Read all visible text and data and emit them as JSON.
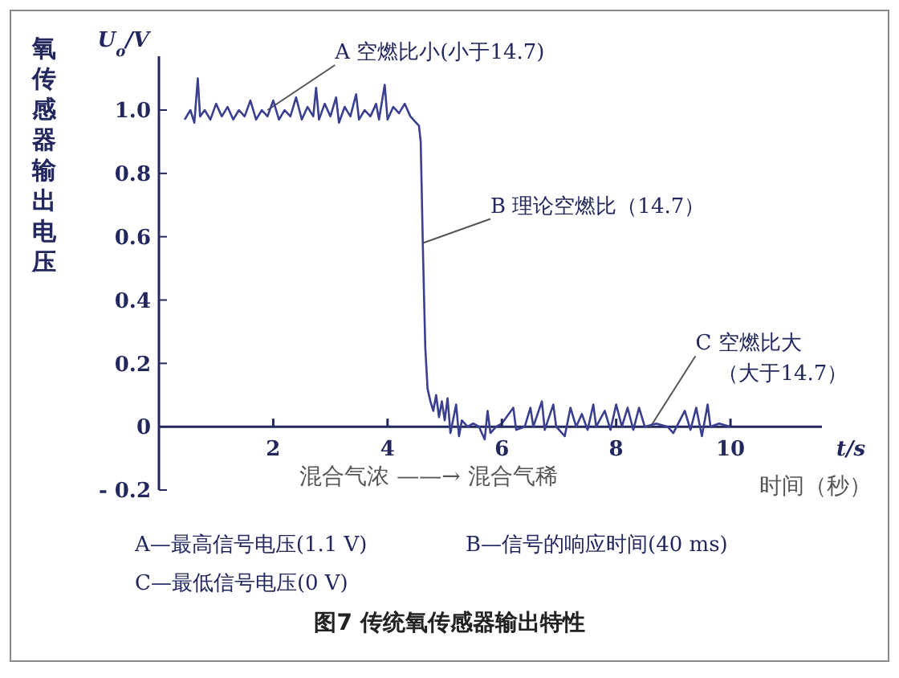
{
  "chart_data": {
    "type": "line",
    "title": "图7 传统氧传感器输出特性",
    "xlabel": "t/s",
    "ylabel": "氧传感器输出电压",
    "annotations": [
      {
        "text": "A 空燃比小(小于14.7)",
        "x": 1.9,
        "y": 1.0
      },
      {
        "text": "B 理论空燃比（14.7）",
        "x": 4.62,
        "y": 0.58
      },
      {
        "text": "C 空燃比大（大于14.7）",
        "x": 8.6,
        "y": 0.0
      },
      "U$_{o}$/V",
      "混合气浓 ——→ 混合气稀",
      "时间（秒）",
      "A—最高信号电压(1.1 V)",
      "B—信号的响应时间(40 ms)",
      "C—最低信号电压(0 V)"
    ],
    "x": [
      0.45,
      0.55,
      0.62,
      0.68,
      0.72,
      0.8,
      0.9,
      1.0,
      1.1,
      1.2,
      1.3,
      1.4,
      1.5,
      1.6,
      1.7,
      1.8,
      1.9,
      2.0,
      2.1,
      2.2,
      2.3,
      2.4,
      2.5,
      2.6,
      2.7,
      2.75,
      2.8,
      2.9,
      3.0,
      3.1,
      3.15,
      3.25,
      3.35,
      3.45,
      3.5,
      3.6,
      3.7,
      3.8,
      3.85,
      3.95,
      4.0,
      4.1,
      4.2,
      4.3,
      4.4,
      4.45,
      4.55,
      4.58,
      4.62,
      4.66,
      4.7,
      4.75,
      4.8,
      4.85,
      4.9,
      4.95,
      5.0,
      5.05,
      5.1,
      5.2,
      5.25,
      5.3,
      5.4,
      5.5,
      5.6,
      5.7,
      5.75,
      5.8,
      5.9,
      6.0,
      6.2,
      6.25,
      6.4,
      6.5,
      6.55,
      6.7,
      6.75,
      6.9,
      6.95,
      7.1,
      7.2,
      7.3,
      7.4,
      7.5,
      7.6,
      7.65,
      7.8,
      7.9,
      8.0,
      8.1,
      8.2,
      8.3,
      8.4,
      8.5,
      8.7,
      8.9,
      9.0,
      9.2,
      9.3,
      9.4,
      9.5,
      9.6,
      9.65,
      9.8,
      10.0
    ],
    "series": [
      {
        "color": "#3a3f8f",
        "values": [
          0.97,
          1.0,
          0.96,
          1.1,
          0.98,
          1.0,
          0.97,
          1.02,
          0.98,
          1.01,
          0.97,
          1.0,
          0.98,
          1.03,
          0.97,
          1.0,
          0.98,
          1.03,
          0.97,
          1.0,
          0.98,
          1.04,
          0.97,
          1.01,
          0.98,
          1.07,
          0.97,
          1.02,
          0.98,
          1.04,
          0.96,
          1.01,
          0.98,
          1.05,
          0.97,
          1.0,
          0.98,
          1.02,
          0.97,
          1.08,
          0.97,
          1.01,
          0.99,
          1.02,
          0.98,
          0.97,
          0.95,
          0.9,
          0.55,
          0.25,
          0.12,
          0.08,
          0.05,
          0.1,
          0.03,
          0.08,
          0.02,
          0.09,
          -0.02,
          0.07,
          -0.03,
          0.02,
          0.0,
          0.01,
          0.0,
          -0.04,
          0.05,
          -0.02,
          0.0,
          0.01,
          0.06,
          -0.01,
          0.0,
          0.06,
          0.0,
          0.08,
          -0.01,
          0.07,
          0.0,
          -0.03,
          0.06,
          0.0,
          0.04,
          -0.01,
          0.07,
          0.0,
          0.05,
          -0.01,
          0.07,
          0.0,
          0.06,
          -0.01,
          0.06,
          0.0,
          0.01,
          0.0,
          -0.02,
          0.05,
          -0.01,
          0.06,
          -0.03,
          0.07,
          0.0,
          0.01,
          0.0
        ]
      }
    ],
    "xlim": [
      0,
      11.6
    ],
    "xticks": [
      2,
      4,
      6,
      8,
      10
    ],
    "ylim": [
      -0.2,
      1.17
    ],
    "yticks": [
      {
        "value": -0.2,
        "label": "- 0.2"
      },
      0,
      0.2,
      0.4,
      0.6,
      0.8,
      {
        "value": 1,
        "label": "1.0"
      }
    ],
    "marker": "none",
    "line_style": "solid"
  }
}
